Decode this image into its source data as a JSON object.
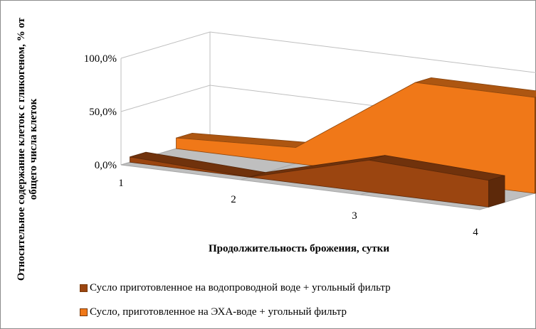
{
  "chart_data": {
    "type": "area",
    "variant": "3d-area",
    "categories": [
      "1",
      "2",
      "3",
      "4"
    ],
    "series": [
      {
        "name": "Сусло приготовленное на водопроводной воде + угольный фильтр",
        "values": [
          5,
          0,
          30,
          25
        ],
        "color": "#9b4510"
      },
      {
        "name": "Сусло, приготовленное на ЭХА-воде + угольный фильтр",
        "values": [
          10,
          15,
          90,
          90
        ],
        "color": "#f07818"
      }
    ],
    "yticks": [
      "0,0%",
      "50,0%",
      "100,0%"
    ],
    "ylim": [
      0,
      100
    ],
    "xlabel": "Продолжительность брожения, сутки",
    "ylabel": "Относительное содержание клеток с гликогеном, % от общего числа клеток",
    "grid": true,
    "legend_position": "bottom"
  }
}
